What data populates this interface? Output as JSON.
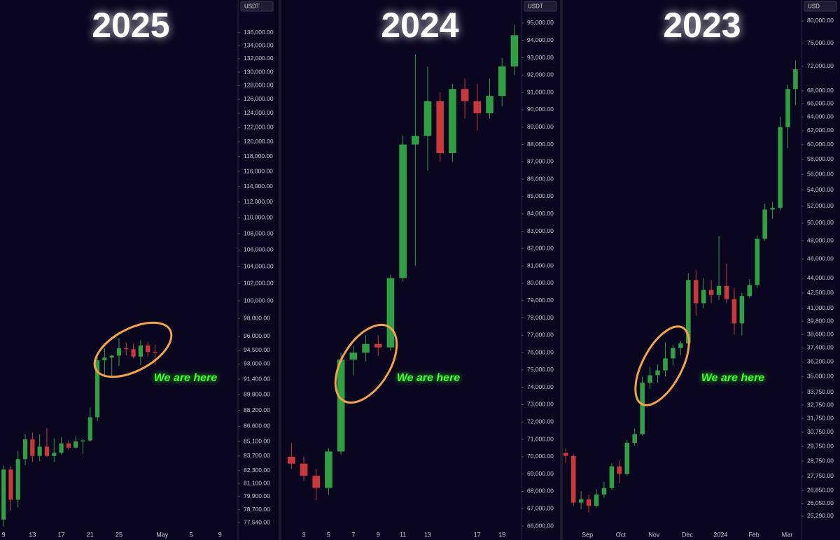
{
  "chart_data": [
    {
      "type": "candlestick",
      "title": "2025",
      "currency": "USDT",
      "annotation": "We are here",
      "log": true,
      "up_color": "#2f9e44",
      "down_color": "#c9383a",
      "x": [
        9,
        10,
        11,
        12,
        13,
        14,
        15,
        16,
        17,
        18,
        19,
        20,
        21,
        22,
        23,
        24,
        25,
        26,
        27,
        28,
        29,
        30
      ],
      "open": [
        77800,
        82400,
        79600,
        83400,
        85300,
        83700,
        84600,
        83700,
        84000,
        84900,
        84500,
        85100,
        85200,
        87500,
        93400,
        93700,
        93900,
        94700,
        94600,
        93800,
        95000,
        94300
      ],
      "high": [
        82800,
        82700,
        84200,
        85800,
        86000,
        85800,
        86400,
        85400,
        85500,
        85200,
        85600,
        85300,
        88500,
        93800,
        94700,
        94000,
        95800,
        95300,
        95200,
        95600,
        95400,
        95100
      ],
      "low": [
        77200,
        78600,
        78900,
        82800,
        83100,
        83200,
        83600,
        83100,
        83800,
        84300,
        84400,
        83900,
        85100,
        87100,
        91800,
        91700,
        92800,
        93900,
        93600,
        92900,
        93800,
        92900
      ],
      "close": [
        82400,
        79600,
        83400,
        85300,
        83700,
        84600,
        83700,
        84000,
        84900,
        84500,
        85100,
        85200,
        87500,
        93400,
        93700,
        93900,
        94700,
        94600,
        93800,
        95000,
        94300,
        94200
      ],
      "xlim": [
        8.5,
        41.5
      ],
      "xticks": [
        9,
        13,
        17,
        21,
        25,
        {
          "value": 31,
          "label": "May"
        },
        {
          "value": 35,
          "label": "5"
        },
        {
          "value": 39,
          "label": "9"
        }
      ],
      "ylim": [
        76740,
        141200
      ],
      "yticks": [
        {
          "value": 136000,
          "label": "136,000.00"
        },
        {
          "value": 134000,
          "label": "134,000.00"
        },
        {
          "value": 132000,
          "label": "132,000.00"
        },
        {
          "value": 130000,
          "label": "130,000.00"
        },
        {
          "value": 128000,
          "label": "128,000.00"
        },
        {
          "value": 126000,
          "label": "126,000.00"
        },
        {
          "value": 124000,
          "label": "124,000.00"
        },
        {
          "value": 122000,
          "label": "122,000.00"
        },
        {
          "value": 120000,
          "label": "120,000.00"
        },
        {
          "value": 118000,
          "label": "118,000.00"
        },
        {
          "value": 116000,
          "label": "116,000.00"
        },
        {
          "value": 114000,
          "label": "114,000.00"
        },
        {
          "value": 112000,
          "label": "112,000.00"
        },
        {
          "value": 110000,
          "label": "110,000.00"
        },
        {
          "value": 108000,
          "label": "108,000.00"
        },
        {
          "value": 106000,
          "label": "106,000.00"
        },
        {
          "value": 104000,
          "label": "104,000.00"
        },
        {
          "value": 102000,
          "label": "102,000.00"
        },
        {
          "value": 100000,
          "label": "100,000.00"
        },
        {
          "value": 98000,
          "label": "98,000.00"
        },
        {
          "value": 96000,
          "label": "96,000.00"
        },
        {
          "value": 94500,
          "label": "94,500.00"
        },
        {
          "value": 93000,
          "label": "93,000.00"
        },
        {
          "value": 91400,
          "label": "91,400.00"
        },
        {
          "value": 89800,
          "label": "89,800.00"
        },
        {
          "value": 88200,
          "label": "88,200.00"
        },
        {
          "value": 86600,
          "label": "86,600.00"
        },
        {
          "value": 85100,
          "label": "85,100.00"
        },
        {
          "value": 83700,
          "label": "83,700.00"
        },
        {
          "value": 82300,
          "label": "82,300.00"
        },
        {
          "value": 81100,
          "label": "81,100.00"
        },
        {
          "value": 79900,
          "label": "79,900.00"
        },
        {
          "value": 78700,
          "label": "78,700.00"
        },
        {
          "value": 77540,
          "label": "77,540.00"
        }
      ]
    },
    {
      "type": "candlestick",
      "title": "2024",
      "currency": "USDT",
      "annotation": "We are here",
      "log": false,
      "up_color": "#2f9e44",
      "down_color": "#c9383a",
      "x": [
        2,
        3,
        4,
        5,
        6,
        7,
        8,
        9,
        10,
        11,
        12,
        13,
        14,
        15,
        16,
        17,
        18,
        19,
        20
      ],
      "open": [
        70000,
        69600,
        68900,
        68200,
        70300,
        75600,
        76000,
        76500,
        76300,
        80300,
        88000,
        88500,
        90500,
        87500,
        91200,
        90500,
        89800,
        90800,
        92500
      ],
      "high": [
        70800,
        70000,
        69300,
        70500,
        76000,
        76400,
        77000,
        77000,
        80500,
        88500,
        93200,
        92500,
        91000,
        91500,
        91800,
        91500,
        91800,
        93000,
        94900
      ],
      "low": [
        69300,
        68600,
        67500,
        67800,
        70100,
        74700,
        75500,
        75800,
        76100,
        80100,
        81000,
        86500,
        87000,
        87000,
        89500,
        88800,
        89500,
        90200,
        92000
      ],
      "close": [
        69600,
        68900,
        68200,
        70300,
        75600,
        76000,
        76500,
        76300,
        80300,
        88000,
        88500,
        90500,
        87500,
        91200,
        90500,
        89800,
        90800,
        92500,
        94300
      ],
      "xlim": [
        1.19,
        20.57
      ],
      "xticks": [
        3,
        5,
        7,
        9,
        11,
        13,
        17,
        19
      ],
      "ylim": [
        65680,
        96330
      ],
      "yticks": [
        {
          "value": 95000,
          "label": "95,000.00"
        },
        {
          "value": 94000,
          "label": "94,000.00"
        },
        {
          "value": 93000,
          "label": "93,000.00"
        },
        {
          "value": 92000,
          "label": "92,000.00"
        },
        {
          "value": 91000,
          "label": "91,000.00"
        },
        {
          "value": 90000,
          "label": "90,000.00"
        },
        {
          "value": 89000,
          "label": "89,000.00"
        },
        {
          "value": 88000,
          "label": "88,000.00"
        },
        {
          "value": 87000,
          "label": "87,000.00"
        },
        {
          "value": 86000,
          "label": "86,000.00"
        },
        {
          "value": 85000,
          "label": "85,000.00"
        },
        {
          "value": 84000,
          "label": "84,000.00"
        },
        {
          "value": 83000,
          "label": "83,000.00"
        },
        {
          "value": 82000,
          "label": "82,000.00"
        },
        {
          "value": 81000,
          "label": "81,000.00"
        },
        {
          "value": 80000,
          "label": "80,000.00"
        },
        {
          "value": 79000,
          "label": "79,000.00"
        },
        {
          "value": 78000,
          "label": "78,000.00"
        },
        {
          "value": 77000,
          "label": "77,000.00"
        },
        {
          "value": 76000,
          "label": "76,000.00"
        },
        {
          "value": 75000,
          "label": "75,000.00"
        },
        {
          "value": 74000,
          "label": "74,000.00"
        },
        {
          "value": 73000,
          "label": "73,000.00"
        },
        {
          "value": 72000,
          "label": "72,000.00"
        },
        {
          "value": 71000,
          "label": "71,000.00"
        },
        {
          "value": 70000,
          "label": "70,000.00"
        },
        {
          "value": 69000,
          "label": "69,000.00"
        },
        {
          "value": 68000,
          "label": "68,000.00"
        },
        {
          "value": 67000,
          "label": "67,000.00"
        },
        {
          "value": 66000,
          "label": "66,000.00"
        }
      ]
    },
    {
      "type": "candlestick",
      "title": "2023",
      "currency": "USD",
      "annotation": "We are here",
      "log": true,
      "up_color": "#2f9e44",
      "down_color": "#c9383a",
      "x": [
        8.35,
        8.58,
        8.81,
        9.04,
        9.27,
        9.5,
        9.73,
        9.96,
        10.19,
        10.42,
        10.65,
        10.88,
        11.11,
        11.34,
        11.57,
        11.8,
        12.03,
        12.26,
        12.49,
        12.72,
        12.95,
        13.18,
        13.41,
        13.64,
        13.87,
        14.1,
        14.33,
        14.56,
        14.79,
        15.02,
        15.25
      ],
      "open": [
        29300,
        29100,
        26100,
        26300,
        25900,
        26600,
        27000,
        28400,
        27900,
        30000,
        30600,
        34500,
        35100,
        35500,
        36500,
        37400,
        37800,
        43800,
        41500,
        42800,
        42300,
        43200,
        41900,
        39600,
        42200,
        43300,
        48200,
        51600,
        51800,
        62500,
        68300
      ],
      "high": [
        29600,
        29200,
        26800,
        26600,
        26900,
        27400,
        28600,
        28800,
        30200,
        31000,
        35000,
        35800,
        36000,
        37900,
        37700,
        38000,
        44500,
        44800,
        44000,
        43800,
        48500,
        45500,
        43000,
        42500,
        43900,
        48600,
        52300,
        52500,
        64000,
        69000,
        73000
      ],
      "low": [
        28600,
        25900,
        25700,
        25500,
        25800,
        26400,
        26900,
        27300,
        27800,
        29800,
        30500,
        34000,
        34500,
        35000,
        35900,
        36800,
        37700,
        40300,
        41000,
        41500,
        41800,
        41500,
        38600,
        38500,
        42000,
        43000,
        48000,
        50500,
        51500,
        59500,
        65800
      ],
      "close": [
        29100,
        26100,
        26300,
        25900,
        26600,
        27000,
        28400,
        27900,
        30000,
        30600,
        34500,
        35100,
        35500,
        36500,
        37400,
        37800,
        43800,
        41500,
        42800,
        42300,
        43200,
        41900,
        39600,
        42200,
        43300,
        48200,
        51600,
        51800,
        62500,
        68300,
        71500
      ],
      "xlim": [
        8.26,
        15.43
      ],
      "xticks": [
        {
          "value": 9,
          "label": "Sep"
        },
        {
          "value": 10,
          "label": "Oct"
        },
        {
          "value": 11,
          "label": "Nov"
        },
        {
          "value": 12,
          "label": "Dec"
        },
        {
          "value": 13,
          "label": "2024"
        },
        {
          "value": 14,
          "label": "Feb"
        },
        {
          "value": 15,
          "label": "Mar"
        }
      ],
      "ylim": [
        24400,
        84000
      ],
      "yticks": [
        {
          "value": 80000,
          "label": "80,000.00"
        },
        {
          "value": 76000,
          "label": "76,000.00"
        },
        {
          "value": 72000,
          "label": "72,000.00"
        },
        {
          "value": 68000,
          "label": "68,000.00"
        },
        {
          "value": 66000,
          "label": "66,000.00"
        },
        {
          "value": 64000,
          "label": "64,000.00"
        },
        {
          "value": 62000,
          "label": "62,000.00"
        },
        {
          "value": 60000,
          "label": "60,000.00"
        },
        {
          "value": 58000,
          "label": "58,000.00"
        },
        {
          "value": 56000,
          "label": "56,000.00"
        },
        {
          "value": 54000,
          "label": "54,000.00"
        },
        {
          "value": 52000,
          "label": "52,000.00"
        },
        {
          "value": 50000,
          "label": "50,000.00"
        },
        {
          "value": 48000,
          "label": "48,000.00"
        },
        {
          "value": 46000,
          "label": "46,000.00"
        },
        {
          "value": 44000,
          "label": "44,000.00"
        },
        {
          "value": 42500,
          "label": "42,500.00"
        },
        {
          "value": 41000,
          "label": "41,000.00"
        },
        {
          "value": 39800,
          "label": "39,800.00"
        },
        {
          "value": 38600,
          "label": "38,600.00"
        },
        {
          "value": 37400,
          "label": "37,400.00"
        },
        {
          "value": 36200,
          "label": "36,200.00"
        },
        {
          "value": 35000,
          "label": "35,000.00"
        },
        {
          "value": 33750,
          "label": "33,750.00"
        },
        {
          "value": 32750,
          "label": "32,750.00"
        },
        {
          "value": 31750,
          "label": "31,750.00"
        },
        {
          "value": 30750,
          "label": "30,750.00"
        },
        {
          "value": 29750,
          "label": "29,750.00"
        },
        {
          "value": 28750,
          "label": "28,750.00"
        },
        {
          "value": 27750,
          "label": "27,750.00"
        },
        {
          "value": 26850,
          "label": "26,850.00"
        },
        {
          "value": 26050,
          "label": "26,050.00"
        },
        {
          "value": 25290,
          "label": "25,290.00"
        }
      ]
    }
  ]
}
